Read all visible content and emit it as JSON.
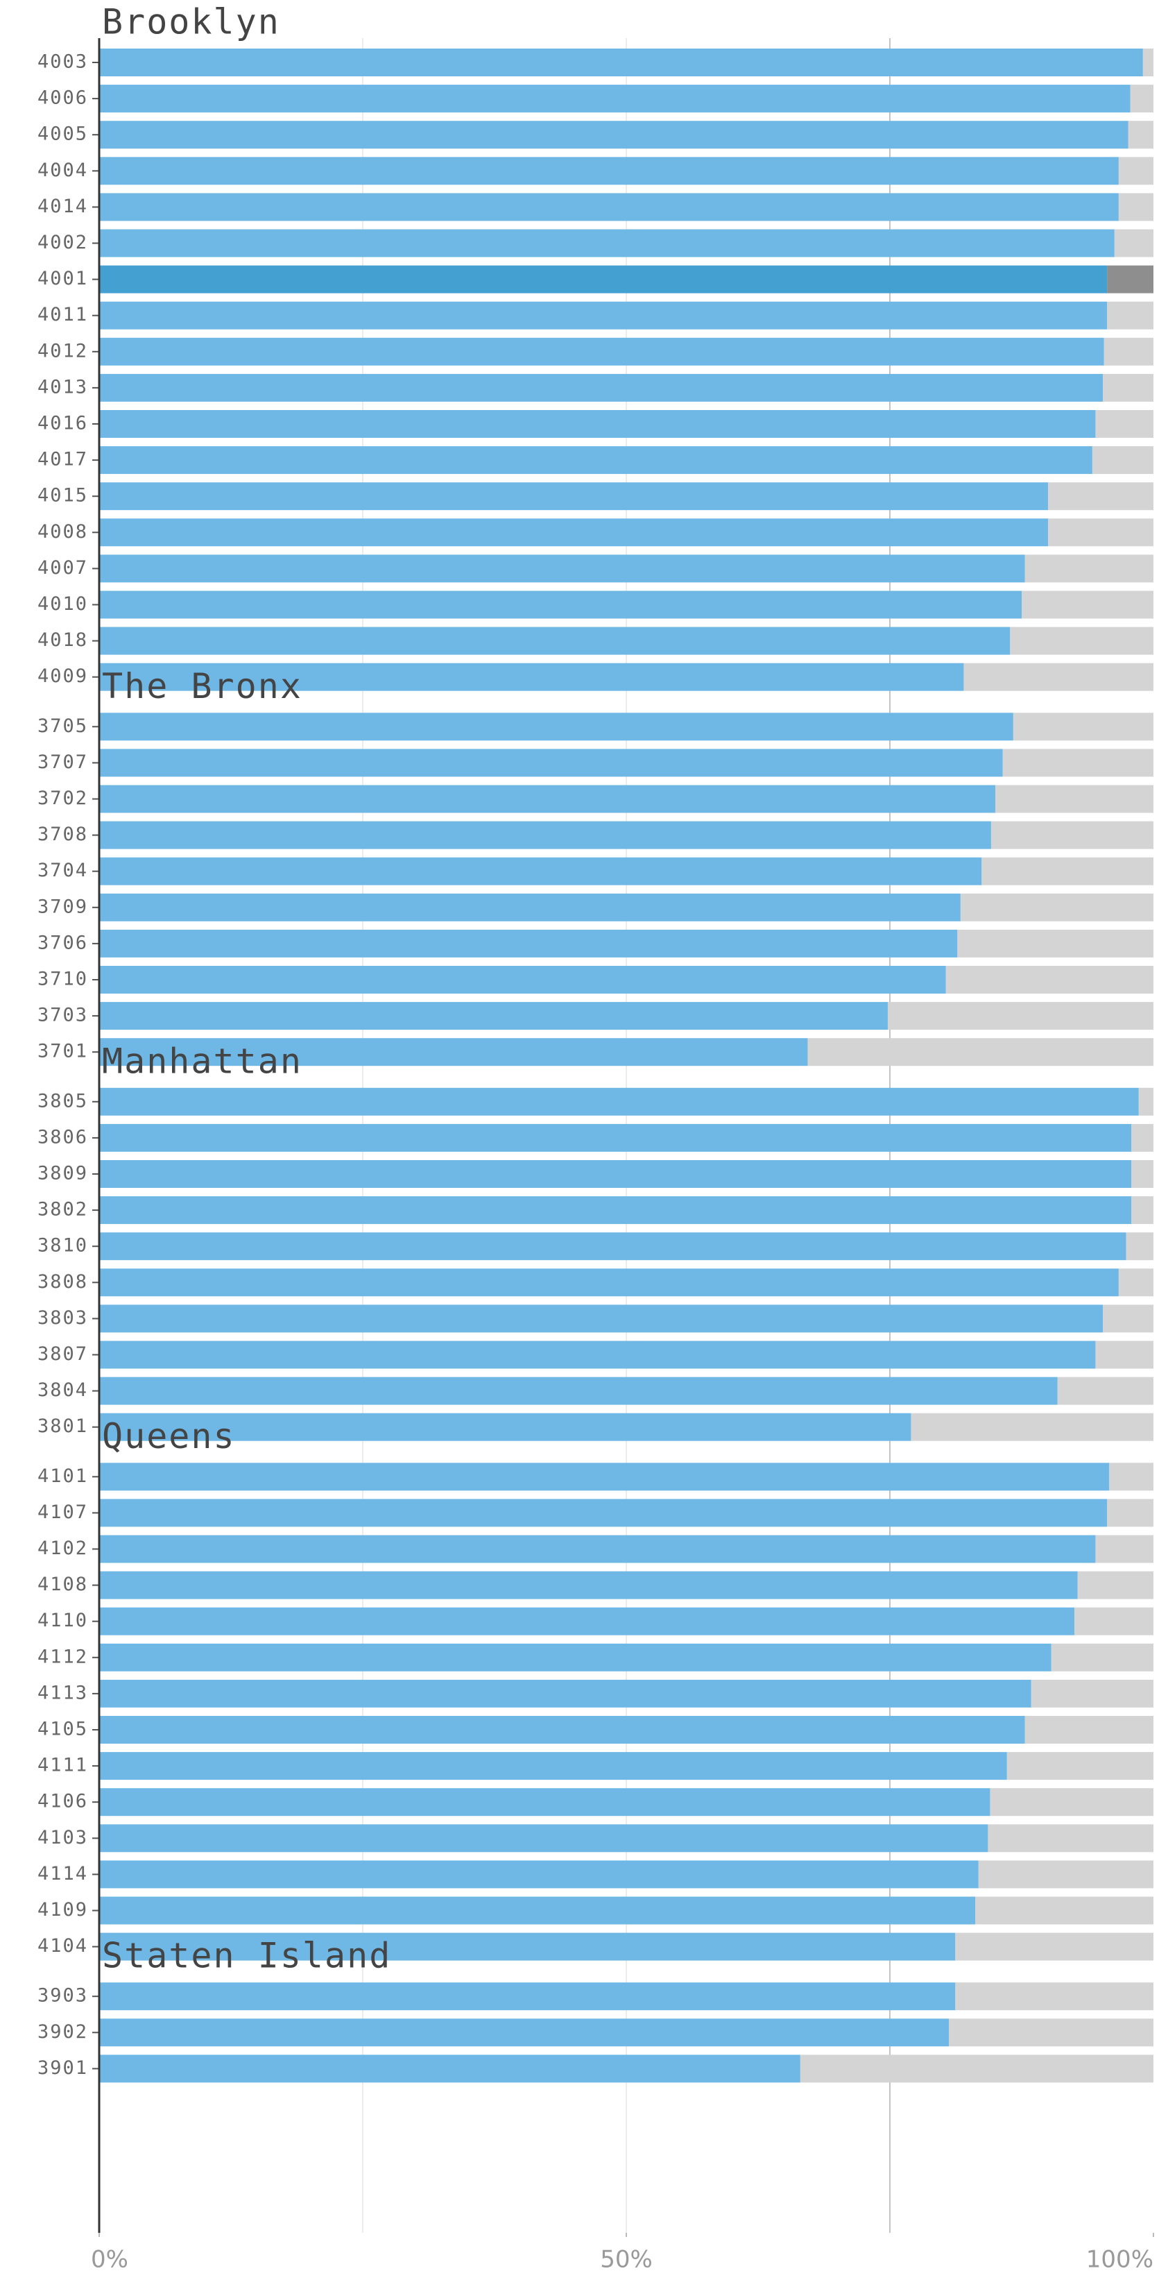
{
  "chart_data": {
    "type": "bar",
    "orientation": "horizontal",
    "color": "#6fb8e6",
    "highlight_color": "#45a0d2",
    "track_color": "#d4d4d4",
    "highlight_track_color": "#8e8e8e",
    "highlight": "4001",
    "xlim": [
      0,
      100
    ],
    "xticks": [
      {
        "value": 0,
        "label": "0%"
      },
      {
        "value": 50,
        "label": "50%"
      },
      {
        "value": 100,
        "label": "100%"
      }
    ],
    "grid": [
      25,
      50,
      75
    ],
    "groups": [
      {
        "name": "Brooklyn",
        "categories": [
          "4003",
          "4006",
          "4005",
          "4004",
          "4014",
          "4002",
          "4001",
          "4011",
          "4012",
          "4013",
          "4016",
          "4017",
          "4015",
          "4008",
          "4007",
          "4010",
          "4018",
          "4009"
        ],
        "values": [
          99.0,
          97.8,
          97.6,
          96.7,
          96.7,
          96.3,
          95.6,
          95.6,
          95.3,
          95.2,
          94.5,
          94.2,
          90.0,
          90.0,
          87.8,
          87.5,
          86.4,
          82.0
        ]
      },
      {
        "name": "The Bronx",
        "categories": [
          "3705",
          "3707",
          "3702",
          "3708",
          "3704",
          "3709",
          "3706",
          "3710",
          "3703",
          "3701"
        ],
        "values": [
          86.7,
          85.7,
          85.0,
          84.6,
          83.7,
          81.7,
          81.4,
          80.3,
          74.8,
          67.2
        ]
      },
      {
        "name": "Manhattan",
        "categories": [
          "3805",
          "3806",
          "3809",
          "3802",
          "3810",
          "3808",
          "3803",
          "3807",
          "3804",
          "3801"
        ],
        "values": [
          98.6,
          97.9,
          97.9,
          97.9,
          97.4,
          96.7,
          95.2,
          94.5,
          90.9,
          77.0
        ]
      },
      {
        "name": "Queens",
        "categories": [
          "4101",
          "4107",
          "4102",
          "4108",
          "4110",
          "4112",
          "4113",
          "4105",
          "4111",
          "4106",
          "4103",
          "4114",
          "4109",
          "4104"
        ],
        "values": [
          95.8,
          95.6,
          94.5,
          92.8,
          92.5,
          90.3,
          88.4,
          87.8,
          86.1,
          84.5,
          84.3,
          83.4,
          83.1,
          81.2
        ]
      },
      {
        "name": "Staten Island",
        "categories": [
          "3903",
          "3902",
          "3901"
        ],
        "values": [
          81.2,
          80.6,
          66.5
        ]
      }
    ]
  }
}
